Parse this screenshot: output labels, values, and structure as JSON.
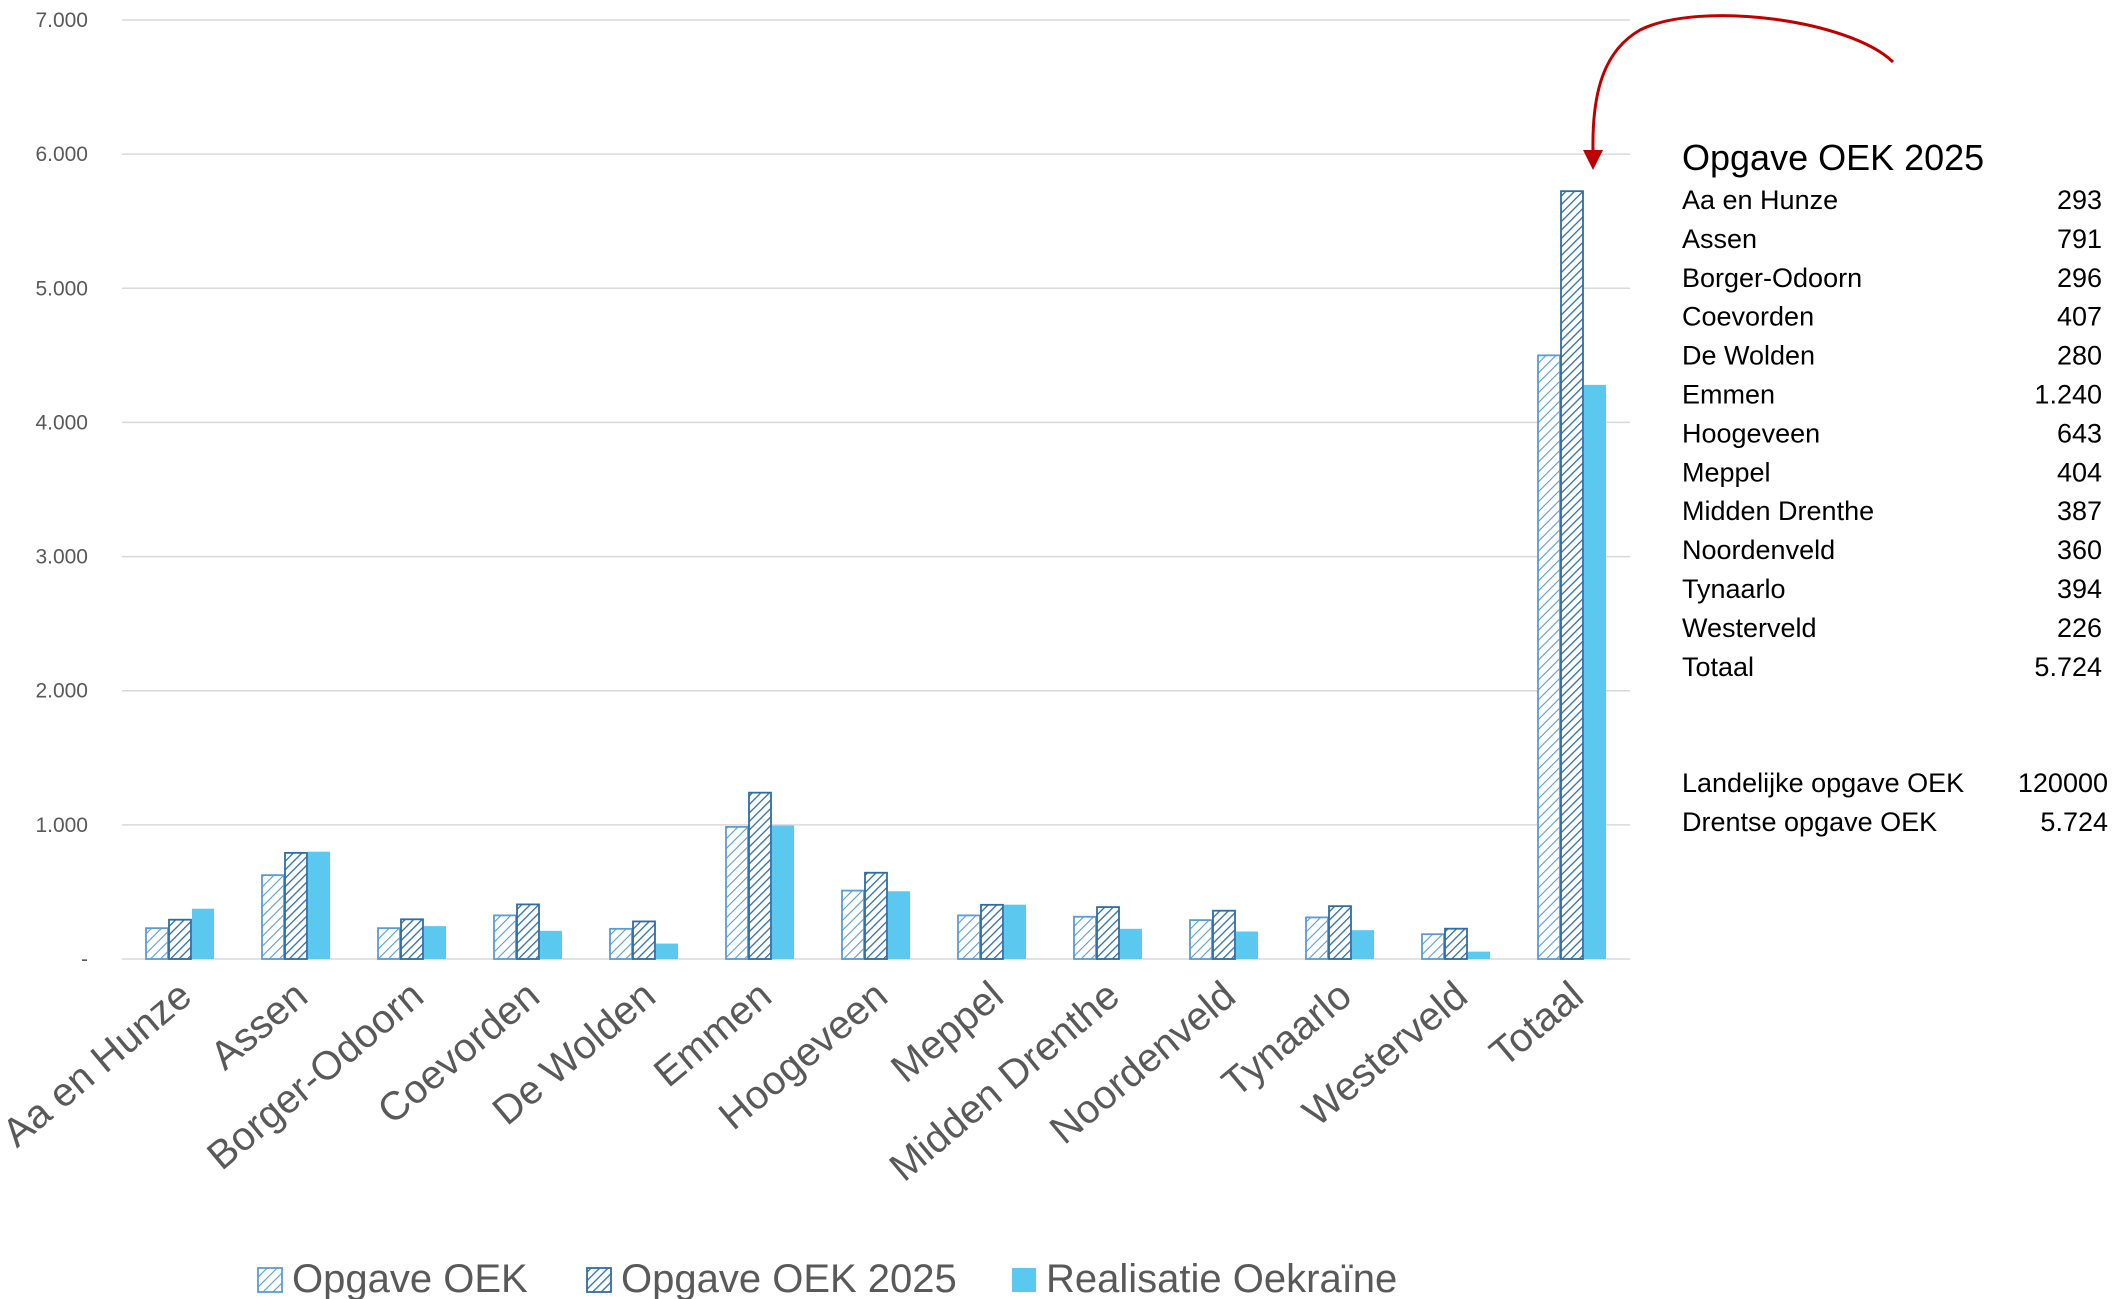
{
  "chart_data": {
    "type": "bar",
    "categories": [
      "Aa en Hunze",
      "Assen",
      "Borger-Odoorn",
      "Coevorden",
      "De Wolden",
      "Emmen",
      "Hoogeveen",
      "Meppel",
      "Midden Drenthe",
      "Noordenveld",
      "Tynaarlo",
      "Westerveld",
      "Totaal"
    ],
    "series": [
      {
        "name": "Opgave OEK",
        "pattern": "light-hatch",
        "color": "#5B9BD5",
        "values": [
          230,
          625,
          230,
          325,
          225,
          985,
          510,
          325,
          315,
          290,
          310,
          185,
          4500
        ]
      },
      {
        "name": "Opgave OEK 2025",
        "pattern": "dark-hatch",
        "color": "#2E6DA4",
        "values": [
          293,
          791,
          296,
          407,
          280,
          1240,
          643,
          404,
          387,
          360,
          394,
          226,
          5724
        ]
      },
      {
        "name": "Realisatie Oekraïne",
        "pattern": "solid",
        "color": "#5BC8F0",
        "values": [
          375,
          800,
          245,
          210,
          115,
          995,
          505,
          405,
          225,
          205,
          215,
          55,
          4280
        ]
      }
    ],
    "ylim": [
      0,
      7000
    ],
    "yticks": [
      0,
      1000,
      2000,
      3000,
      4000,
      5000,
      6000,
      7000
    ],
    "ytick_labels": [
      "-",
      "1.000",
      "2.000",
      "3.000",
      "4.000",
      "5.000",
      "6.000",
      "7.000"
    ],
    "grid": true,
    "legend_position": "bottom",
    "annotation": "red curved arrow pointing to Totaal / Opgave OEK 2025 bar"
  },
  "side_table": {
    "title": "Opgave OEK 2025",
    "rows": [
      {
        "label": "Aa en Hunze",
        "value": "293"
      },
      {
        "label": "Assen",
        "value": "791"
      },
      {
        "label": "Borger-Odoorn",
        "value": "296"
      },
      {
        "label": "Coevorden",
        "value": "407"
      },
      {
        "label": "De Wolden",
        "value": "280"
      },
      {
        "label": "Emmen",
        "value": "1.240"
      },
      {
        "label": "Hoogeveen",
        "value": "643"
      },
      {
        "label": "Meppel",
        "value": "404"
      },
      {
        "label": "Midden Drenthe",
        "value": "387"
      },
      {
        "label": "Noordenveld",
        "value": "360"
      },
      {
        "label": "Tynaarlo",
        "value": "394"
      },
      {
        "label": "Westerveld",
        "value": "226"
      },
      {
        "label": "Totaal",
        "value": "5.724"
      }
    ],
    "summary": [
      {
        "label": "Landelijke opgave OEK",
        "value": "120000"
      },
      {
        "label": "Drentse opgave OEK",
        "value": "5.724"
      }
    ]
  },
  "colors": {
    "grid": "#D9D9D9",
    "text": "#595959",
    "arrow": "#C00000"
  }
}
